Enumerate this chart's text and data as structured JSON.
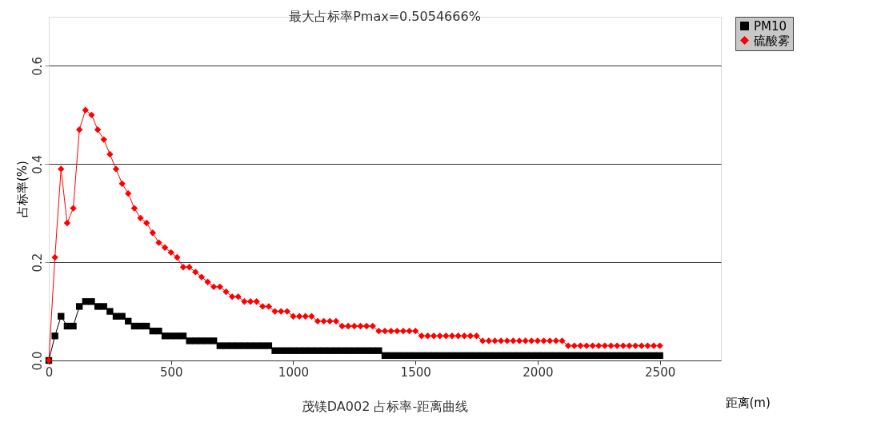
{
  "chart_data": {
    "type": "line",
    "title": "最大占标率Pmax=0.5054666%",
    "xlabel": "距离(m)",
    "ylabel": "占标率(%)",
    "annotations": [
      "茂镁DA002 占标率-距离曲线"
    ],
    "x": [
      0,
      25,
      50,
      75,
      100,
      125,
      150,
      175,
      200,
      225,
      250,
      275,
      300,
      325,
      350,
      375,
      400,
      425,
      450,
      475,
      500,
      525,
      550,
      575,
      600,
      625,
      650,
      675,
      700,
      725,
      750,
      775,
      800,
      825,
      850,
      875,
      900,
      925,
      950,
      975,
      1000,
      1025,
      1050,
      1075,
      1100,
      1125,
      1150,
      1175,
      1200,
      1225,
      1250,
      1275,
      1300,
      1325,
      1350,
      1375,
      1400,
      1425,
      1450,
      1475,
      1500,
      1525,
      1550,
      1575,
      1600,
      1625,
      1650,
      1675,
      1700,
      1725,
      1750,
      1775,
      1800,
      1825,
      1850,
      1875,
      1900,
      1925,
      1950,
      1975,
      2000,
      2025,
      2050,
      2075,
      2100,
      2125,
      2150,
      2175,
      2200,
      2225,
      2250,
      2275,
      2300,
      2325,
      2350,
      2375,
      2400,
      2425,
      2450,
      2475,
      2500
    ],
    "series": [
      {
        "name": "PM10",
        "color": "#000000",
        "marker": "square",
        "values": [
          0,
          0.05,
          0.09,
          0.07,
          0.07,
          0.11,
          0.12,
          0.12,
          0.11,
          0.11,
          0.1,
          0.09,
          0.09,
          0.08,
          0.07,
          0.07,
          0.07,
          0.06,
          0.06,
          0.05,
          0.05,
          0.05,
          0.05,
          0.04,
          0.04,
          0.04,
          0.04,
          0.04,
          0.03,
          0.03,
          0.03,
          0.03,
          0.03,
          0.03,
          0.03,
          0.03,
          0.03,
          0.02,
          0.02,
          0.02,
          0.02,
          0.02,
          0.02,
          0.02,
          0.02,
          0.02,
          0.02,
          0.02,
          0.02,
          0.02,
          0.02,
          0.02,
          0.02,
          0.02,
          0.02,
          0.01,
          0.01,
          0.01,
          0.01,
          0.01,
          0.01,
          0.01,
          0.01,
          0.01,
          0.01,
          0.01,
          0.01,
          0.01,
          0.01,
          0.01,
          0.01,
          0.01,
          0.01,
          0.01,
          0.01,
          0.01,
          0.01,
          0.01,
          0.01,
          0.01,
          0.01,
          0.01,
          0.01,
          0.01,
          0.01,
          0.01,
          0.01,
          0.01,
          0.01,
          0.01,
          0.01,
          0.01,
          0.01,
          0.01,
          0.01,
          0.01,
          0.01,
          0.01,
          0.01,
          0.01,
          0.01
        ]
      },
      {
        "name": "硫酸雾",
        "color": "#ff0000",
        "marker": "diamond",
        "values": [
          0,
          0.21,
          0.39,
          0.28,
          0.31,
          0.47,
          0.51,
          0.5,
          0.47,
          0.45,
          0.42,
          0.39,
          0.36,
          0.34,
          0.31,
          0.29,
          0.28,
          0.26,
          0.24,
          0.23,
          0.22,
          0.21,
          0.19,
          0.19,
          0.18,
          0.17,
          0.16,
          0.15,
          0.15,
          0.14,
          0.13,
          0.13,
          0.12,
          0.12,
          0.12,
          0.11,
          0.11,
          0.1,
          0.1,
          0.1,
          0.09,
          0.09,
          0.09,
          0.09,
          0.08,
          0.08,
          0.08,
          0.08,
          0.07,
          0.07,
          0.07,
          0.07,
          0.07,
          0.07,
          0.06,
          0.06,
          0.06,
          0.06,
          0.06,
          0.06,
          0.06,
          0.05,
          0.05,
          0.05,
          0.05,
          0.05,
          0.05,
          0.05,
          0.05,
          0.05,
          0.05,
          0.04,
          0.04,
          0.04,
          0.04,
          0.04,
          0.04,
          0.04,
          0.04,
          0.04,
          0.04,
          0.04,
          0.04,
          0.04,
          0.04,
          0.03,
          0.03,
          0.03,
          0.03,
          0.03,
          0.03,
          0.03,
          0.03,
          0.03,
          0.03,
          0.03,
          0.03,
          0.03,
          0.03,
          0.03,
          0.03
        ]
      }
    ],
    "xlim": [
      0,
      2750
    ],
    "xticks": [
      0,
      500,
      1000,
      1500,
      2000,
      2500
    ],
    "ylim": [
      0,
      0.7
    ],
    "yticks": [
      {
        "value": 0,
        "label": "0.0"
      },
      0.2,
      0.4,
      0.6
    ],
    "grid": "y",
    "legend": "right",
    "line_style": "solid"
  }
}
